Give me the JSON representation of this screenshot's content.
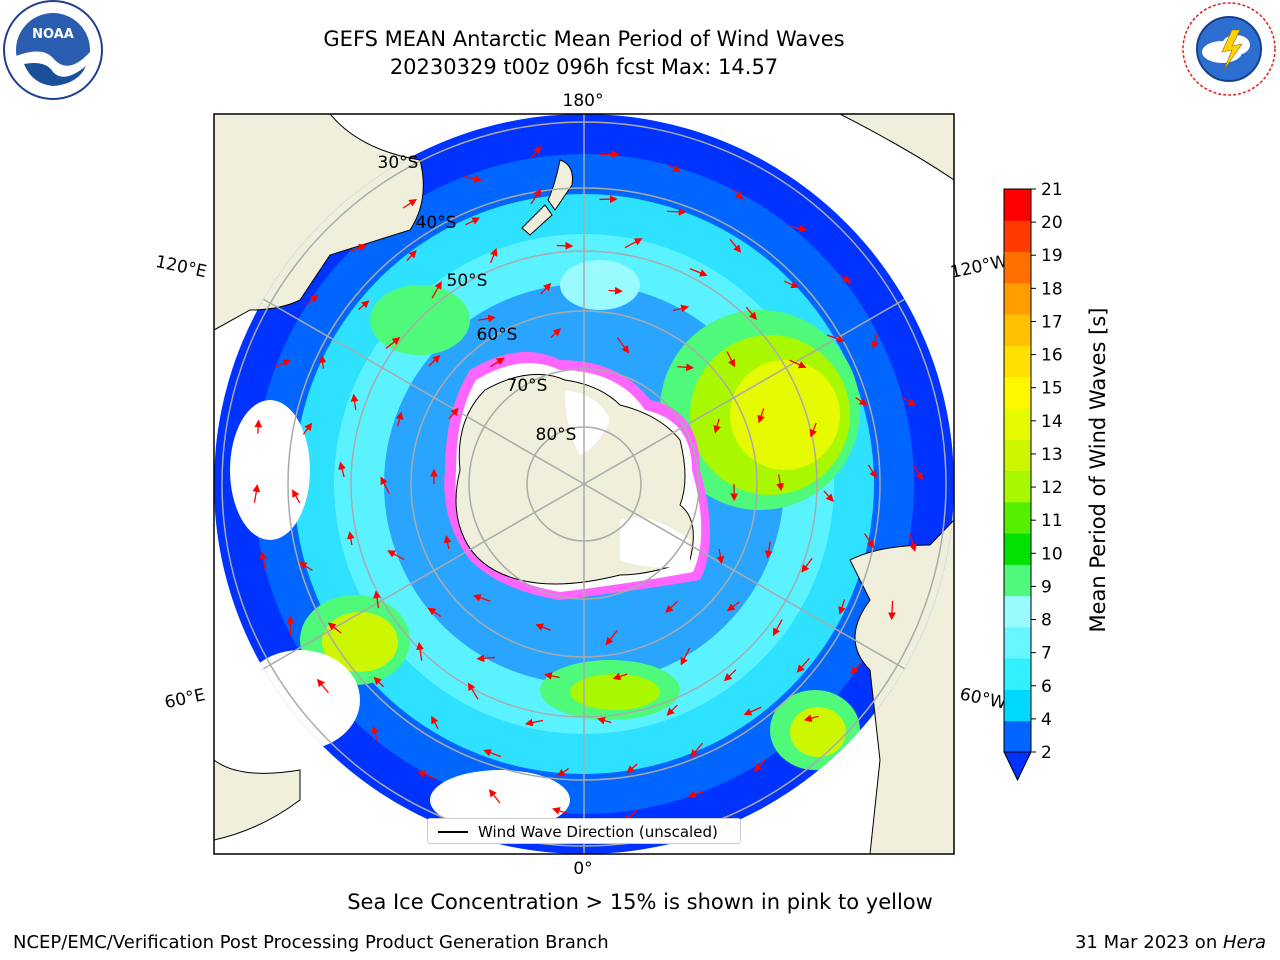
{
  "title": {
    "line1": "GEFS MEAN Antarctic Mean Period of Wind Waves",
    "line2": "20230329 t00z 096h fcst   Max: 14.57"
  },
  "logos": {
    "left": "NOAA",
    "right_ring": "NATIONAL WEATHER SERVICE"
  },
  "map": {
    "longitude_labels": {
      "top": "180°",
      "bottom": "0°",
      "upper_left": "120°E",
      "lower_left": "60°E",
      "upper_right": "120°W",
      "lower_right": "60°W"
    },
    "latitude_labels": [
      "30°S",
      "40°S",
      "50°S",
      "60°S",
      "70°S",
      "80°S"
    ],
    "legend": "Wind Wave Direction (unscaled)"
  },
  "colorbar": {
    "label": "Mean Period of Wind Waves [s]",
    "ticks": [
      "2",
      "4",
      "6",
      "7",
      "8",
      "9",
      "10",
      "11",
      "12",
      "13",
      "14",
      "15",
      "16",
      "17",
      "18",
      "19",
      "20",
      "21"
    ],
    "colors": [
      "#0066ff",
      "#00d9ff",
      "#33f0ff",
      "#66f6ff",
      "#99fbff",
      "#4ff97a",
      "#00e100",
      "#55f000",
      "#a9f800",
      "#ccf700",
      "#e6fb00",
      "#fff700",
      "#ffe000",
      "#ffc000",
      "#ff9c00",
      "#ff7000",
      "#ff3a00",
      "#ff0000"
    ],
    "under_color": "#0033ff"
  },
  "caption": "Sea Ice Concentration > 15% is shown in pink to yellow",
  "footer": {
    "left": "NCEP/EMC/Verification Post Processing Product Generation Branch",
    "right_prefix": "31 Mar 2023 on ",
    "right_host": "Hera"
  }
}
